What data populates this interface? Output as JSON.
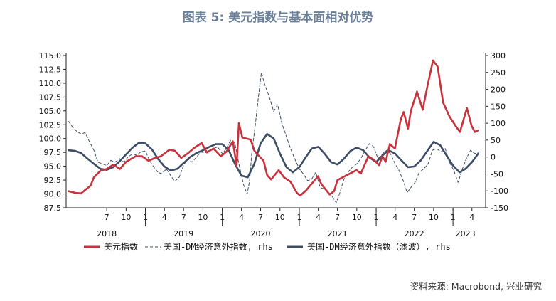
{
  "title": "图表 5:  美元指数与基本面相对优势",
  "source": "资料来源: Macrobond, 兴业研究",
  "chart_data": {
    "type": "line",
    "x_range": [
      "2017-12-20",
      "2023-06-05"
    ],
    "y_left": {
      "range": [
        87.5,
        115.0
      ],
      "ticks": [
        "87.5",
        "90.0",
        "92.5",
        "95.0",
        "97.5",
        "100.0",
        "102.5",
        "105.0",
        "107.5",
        "110.0",
        "112.5",
        "115.0"
      ]
    },
    "y_right": {
      "range": [
        -150,
        300
      ],
      "ticks": [
        "-150",
        "-100",
        "-50",
        "0",
        "50",
        "100",
        "150",
        "200",
        "250",
        "300"
      ]
    },
    "x_month_ticks": [
      {
        "date": "2018-07-01",
        "label": "7"
      },
      {
        "date": "2018-10-01",
        "label": "10"
      },
      {
        "date": "2019-01-01",
        "label": "1"
      },
      {
        "date": "2019-04-01",
        "label": "4"
      },
      {
        "date": "2019-07-01",
        "label": "7"
      },
      {
        "date": "2019-10-01",
        "label": "10"
      },
      {
        "date": "2020-01-01",
        "label": "1"
      },
      {
        "date": "2020-04-01",
        "label": "4"
      },
      {
        "date": "2020-07-01",
        "label": "7"
      },
      {
        "date": "2020-10-01",
        "label": "10"
      },
      {
        "date": "2021-01-01",
        "label": "1"
      },
      {
        "date": "2021-04-01",
        "label": "4"
      },
      {
        "date": "2021-07-01",
        "label": "7"
      },
      {
        "date": "2021-10-01",
        "label": "10"
      },
      {
        "date": "2022-01-01",
        "label": "1"
      },
      {
        "date": "2022-04-01",
        "label": "4"
      },
      {
        "date": "2022-07-01",
        "label": "7"
      },
      {
        "date": "2022-10-01",
        "label": "10"
      },
      {
        "date": "2023-01-01",
        "label": "1"
      },
      {
        "date": "2023-04-01",
        "label": "4"
      }
    ],
    "x_year_labels": [
      {
        "date": "2018-07-01",
        "label": "2018"
      },
      {
        "date": "2019-07-01",
        "label": "2019"
      },
      {
        "date": "2020-07-01",
        "label": "2020"
      },
      {
        "date": "2021-07-01",
        "label": "2021"
      },
      {
        "date": "2022-07-01",
        "label": "2022"
      },
      {
        "date": "2023-03-01",
        "label": "2023"
      }
    ],
    "legend_position": "bottom",
    "series": [
      {
        "name": "美元指数",
        "axis": "left",
        "color": "#c8323c",
        "style": "solid",
        "points": [
          [
            "2018-01-01",
            90.5
          ],
          [
            "2018-02-01",
            90.2
          ],
          [
            "2018-03-01",
            90.1
          ],
          [
            "2018-04-15",
            91.5
          ],
          [
            "2018-05-01",
            93.0
          ],
          [
            "2018-06-01",
            94.2
          ],
          [
            "2018-07-01",
            94.5
          ],
          [
            "2018-08-01",
            95.3
          ],
          [
            "2018-09-01",
            94.5
          ],
          [
            "2018-10-01",
            95.8
          ],
          [
            "2018-11-15",
            96.8
          ],
          [
            "2018-12-15",
            96.8
          ],
          [
            "2019-01-15",
            96.0
          ],
          [
            "2019-02-15",
            96.5
          ],
          [
            "2019-03-15",
            96.8
          ],
          [
            "2019-04-25",
            98.0
          ],
          [
            "2019-05-20",
            97.8
          ],
          [
            "2019-06-20",
            96.5
          ],
          [
            "2019-07-20",
            97.3
          ],
          [
            "2019-08-20",
            98.3
          ],
          [
            "2019-09-25",
            99.2
          ],
          [
            "2019-10-20",
            97.5
          ],
          [
            "2019-11-20",
            98.2
          ],
          [
            "2019-12-25",
            96.8
          ],
          [
            "2020-01-20",
            97.6
          ],
          [
            "2020-02-20",
            99.5
          ],
          [
            "2020-03-09",
            95.0
          ],
          [
            "2020-03-20",
            102.8
          ],
          [
            "2020-04-05",
            100.2
          ],
          [
            "2020-05-15",
            99.8
          ],
          [
            "2020-06-01",
            97.8
          ],
          [
            "2020-06-20",
            97.0
          ],
          [
            "2020-07-15",
            96.0
          ],
          [
            "2020-08-01",
            93.4
          ],
          [
            "2020-08-20",
            92.6
          ],
          [
            "2020-09-25",
            94.3
          ],
          [
            "2020-10-20",
            93.0
          ],
          [
            "2020-11-20",
            92.2
          ],
          [
            "2020-12-20",
            90.2
          ],
          [
            "2021-01-05",
            89.7
          ],
          [
            "2021-02-01",
            90.6
          ],
          [
            "2021-03-31",
            93.2
          ],
          [
            "2021-04-15",
            91.8
          ],
          [
            "2021-05-25",
            89.9
          ],
          [
            "2021-06-15",
            90.5
          ],
          [
            "2021-07-01",
            92.5
          ],
          [
            "2021-08-20",
            93.5
          ],
          [
            "2021-09-30",
            94.3
          ],
          [
            "2021-10-20",
            93.7
          ],
          [
            "2021-11-25",
            96.8
          ],
          [
            "2021-12-20",
            96.2
          ],
          [
            "2022-01-15",
            95.2
          ],
          [
            "2022-01-31",
            96.8
          ],
          [
            "2022-02-15",
            95.8
          ],
          [
            "2022-03-07",
            99.0
          ],
          [
            "2022-03-31",
            98.2
          ],
          [
            "2022-04-28",
            103.5
          ],
          [
            "2022-05-12",
            104.8
          ],
          [
            "2022-06-01",
            101.8
          ],
          [
            "2022-06-15",
            105.0
          ],
          [
            "2022-07-14",
            108.5
          ],
          [
            "2022-08-10",
            105.2
          ],
          [
            "2022-08-30",
            109.0
          ],
          [
            "2022-09-28",
            114.1
          ],
          [
            "2022-10-20",
            113.0
          ],
          [
            "2022-11-15",
            106.5
          ],
          [
            "2022-12-15",
            104.0
          ],
          [
            "2023-01-15",
            102.2
          ],
          [
            "2023-02-03",
            101.2
          ],
          [
            "2023-03-08",
            105.5
          ],
          [
            "2023-03-30",
            102.3
          ],
          [
            "2023-04-15",
            101.2
          ],
          [
            "2023-05-01",
            101.5
          ]
        ]
      },
      {
        "name": "美国-DM经济意外指数, rhs",
        "axis": "right",
        "color": "#3d4d66",
        "style": "dashed",
        "points": [
          [
            "2018-01-01",
            105
          ],
          [
            "2018-01-20",
            88
          ],
          [
            "2018-02-10",
            75
          ],
          [
            "2018-03-01",
            68
          ],
          [
            "2018-03-20",
            72
          ],
          [
            "2018-04-10",
            45
          ],
          [
            "2018-05-01",
            20
          ],
          [
            "2018-05-20",
            -15
          ],
          [
            "2018-06-10",
            -20
          ],
          [
            "2018-07-01",
            -25
          ],
          [
            "2018-07-20",
            -10
          ],
          [
            "2018-08-10",
            -15
          ],
          [
            "2018-09-01",
            -5
          ],
          [
            "2018-09-20",
            -15
          ],
          [
            "2018-10-10",
            0
          ],
          [
            "2018-11-01",
            10
          ],
          [
            "2018-11-20",
            5
          ],
          [
            "2018-12-10",
            15
          ],
          [
            "2019-01-01",
            18
          ],
          [
            "2019-01-20",
            -10
          ],
          [
            "2019-02-10",
            -30
          ],
          [
            "2019-03-01",
            -45
          ],
          [
            "2019-03-20",
            -50
          ],
          [
            "2019-04-10",
            -35
          ],
          [
            "2019-05-01",
            -55
          ],
          [
            "2019-05-20",
            -72
          ],
          [
            "2019-06-10",
            -60
          ],
          [
            "2019-07-01",
            -25
          ],
          [
            "2019-07-20",
            -5
          ],
          [
            "2019-08-10",
            -15
          ],
          [
            "2019-09-01",
            0
          ],
          [
            "2019-09-20",
            15
          ],
          [
            "2019-10-10",
            12
          ],
          [
            "2019-11-01",
            20
          ],
          [
            "2019-11-20",
            25
          ],
          [
            "2019-12-10",
            30
          ],
          [
            "2020-01-01",
            10
          ],
          [
            "2020-01-20",
            25
          ],
          [
            "2020-02-10",
            50
          ],
          [
            "2020-03-01",
            40
          ],
          [
            "2020-03-20",
            -20
          ],
          [
            "2020-04-10",
            -80
          ],
          [
            "2020-04-28",
            -110
          ],
          [
            "2020-05-10",
            -70
          ],
          [
            "2020-05-20",
            10
          ],
          [
            "2020-06-05",
            90
          ],
          [
            "2020-06-20",
            175
          ],
          [
            "2020-07-05",
            250
          ],
          [
            "2020-07-20",
            215
          ],
          [
            "2020-08-10",
            180
          ],
          [
            "2020-09-01",
            135
          ],
          [
            "2020-09-20",
            155
          ],
          [
            "2020-10-10",
            100
          ],
          [
            "2020-11-01",
            60
          ],
          [
            "2020-11-20",
            25
          ],
          [
            "2020-12-10",
            -5
          ],
          [
            "2021-01-01",
            -35
          ],
          [
            "2021-01-20",
            -50
          ],
          [
            "2021-02-10",
            -70
          ],
          [
            "2021-03-01",
            -65
          ],
          [
            "2021-03-20",
            -45
          ],
          [
            "2021-04-10",
            -90
          ],
          [
            "2021-05-01",
            -95
          ],
          [
            "2021-05-20",
            -105
          ],
          [
            "2021-06-10",
            -120
          ],
          [
            "2021-06-25",
            -135
          ],
          [
            "2021-07-10",
            -110
          ],
          [
            "2021-08-01",
            -65
          ],
          [
            "2021-08-20",
            -45
          ],
          [
            "2021-09-10",
            -30
          ],
          [
            "2021-10-01",
            -20
          ],
          [
            "2021-10-20",
            -5
          ],
          [
            "2021-11-10",
            20
          ],
          [
            "2021-12-01",
            40
          ],
          [
            "2021-12-20",
            30
          ],
          [
            "2022-01-10",
            -5
          ],
          [
            "2022-02-01",
            10
          ],
          [
            "2022-02-20",
            20
          ],
          [
            "2022-03-10",
            10
          ],
          [
            "2022-04-01",
            -20
          ],
          [
            "2022-04-20",
            -40
          ],
          [
            "2022-05-10",
            -70
          ],
          [
            "2022-05-28",
            -105
          ],
          [
            "2022-06-15",
            -90
          ],
          [
            "2022-07-05",
            -75
          ],
          [
            "2022-07-25",
            -45
          ],
          [
            "2022-08-15",
            -35
          ],
          [
            "2022-09-05",
            -20
          ],
          [
            "2022-09-25",
            20
          ],
          [
            "2022-10-15",
            25
          ],
          [
            "2022-11-05",
            15
          ],
          [
            "2022-11-25",
            25
          ],
          [
            "2022-12-15",
            -15
          ],
          [
            "2023-01-05",
            -40
          ],
          [
            "2023-01-25",
            -75
          ],
          [
            "2023-02-15",
            -35
          ],
          [
            "2023-03-05",
            -5
          ],
          [
            "2023-03-25",
            20
          ],
          [
            "2023-04-15",
            10
          ],
          [
            "2023-05-01",
            15
          ]
        ]
      },
      {
        "name": "美国-DM经济意外指数（滤波）, rhs",
        "axis": "right",
        "color": "#3d4d66",
        "style": "solid",
        "points": [
          [
            "2018-01-01",
            20
          ],
          [
            "2018-02-01",
            18
          ],
          [
            "2018-03-01",
            12
          ],
          [
            "2018-04-01",
            -5
          ],
          [
            "2018-05-01",
            -20
          ],
          [
            "2018-06-01",
            -35
          ],
          [
            "2018-07-01",
            -38
          ],
          [
            "2018-08-01",
            -30
          ],
          [
            "2018-09-01",
            -12
          ],
          [
            "2018-10-01",
            8
          ],
          [
            "2018-11-01",
            28
          ],
          [
            "2018-12-01",
            42
          ],
          [
            "2019-01-01",
            40
          ],
          [
            "2019-02-01",
            22
          ],
          [
            "2019-03-01",
            -5
          ],
          [
            "2019-04-01",
            -28
          ],
          [
            "2019-05-01",
            -40
          ],
          [
            "2019-06-01",
            -35
          ],
          [
            "2019-07-01",
            -18
          ],
          [
            "2019-08-01",
            0
          ],
          [
            "2019-09-01",
            12
          ],
          [
            "2019-10-01",
            20
          ],
          [
            "2019-11-01",
            30
          ],
          [
            "2019-12-01",
            38
          ],
          [
            "2020-01-01",
            38
          ],
          [
            "2020-02-01",
            20
          ],
          [
            "2020-03-01",
            -20
          ],
          [
            "2020-04-01",
            -55
          ],
          [
            "2020-05-01",
            -60
          ],
          [
            "2020-06-01",
            -20
          ],
          [
            "2020-07-01",
            40
          ],
          [
            "2020-08-01",
            68
          ],
          [
            "2020-09-01",
            55
          ],
          [
            "2020-10-01",
            10
          ],
          [
            "2020-11-01",
            -30
          ],
          [
            "2020-12-01",
            -45
          ],
          [
            "2021-01-01",
            -30
          ],
          [
            "2021-02-01",
            0
          ],
          [
            "2021-03-01",
            25
          ],
          [
            "2021-04-01",
            30
          ],
          [
            "2021-05-01",
            10
          ],
          [
            "2021-06-01",
            -15
          ],
          [
            "2021-07-01",
            -22
          ],
          [
            "2021-08-01",
            -5
          ],
          [
            "2021-09-01",
            18
          ],
          [
            "2021-10-01",
            28
          ],
          [
            "2021-11-01",
            20
          ],
          [
            "2021-12-01",
            -2
          ],
          [
            "2022-01-01",
            -15
          ],
          [
            "2022-02-01",
            5
          ],
          [
            "2022-03-01",
            20
          ],
          [
            "2022-04-01",
            10
          ],
          [
            "2022-05-01",
            -10
          ],
          [
            "2022-06-01",
            -30
          ],
          [
            "2022-07-01",
            -28
          ],
          [
            "2022-08-01",
            -10
          ],
          [
            "2022-09-01",
            18
          ],
          [
            "2022-10-01",
            45
          ],
          [
            "2022-11-01",
            35
          ],
          [
            "2022-12-01",
            5
          ],
          [
            "2023-01-01",
            -25
          ],
          [
            "2023-02-01",
            -45
          ],
          [
            "2023-03-01",
            -35
          ],
          [
            "2023-04-01",
            -15
          ],
          [
            "2023-05-01",
            10
          ]
        ]
      }
    ]
  }
}
